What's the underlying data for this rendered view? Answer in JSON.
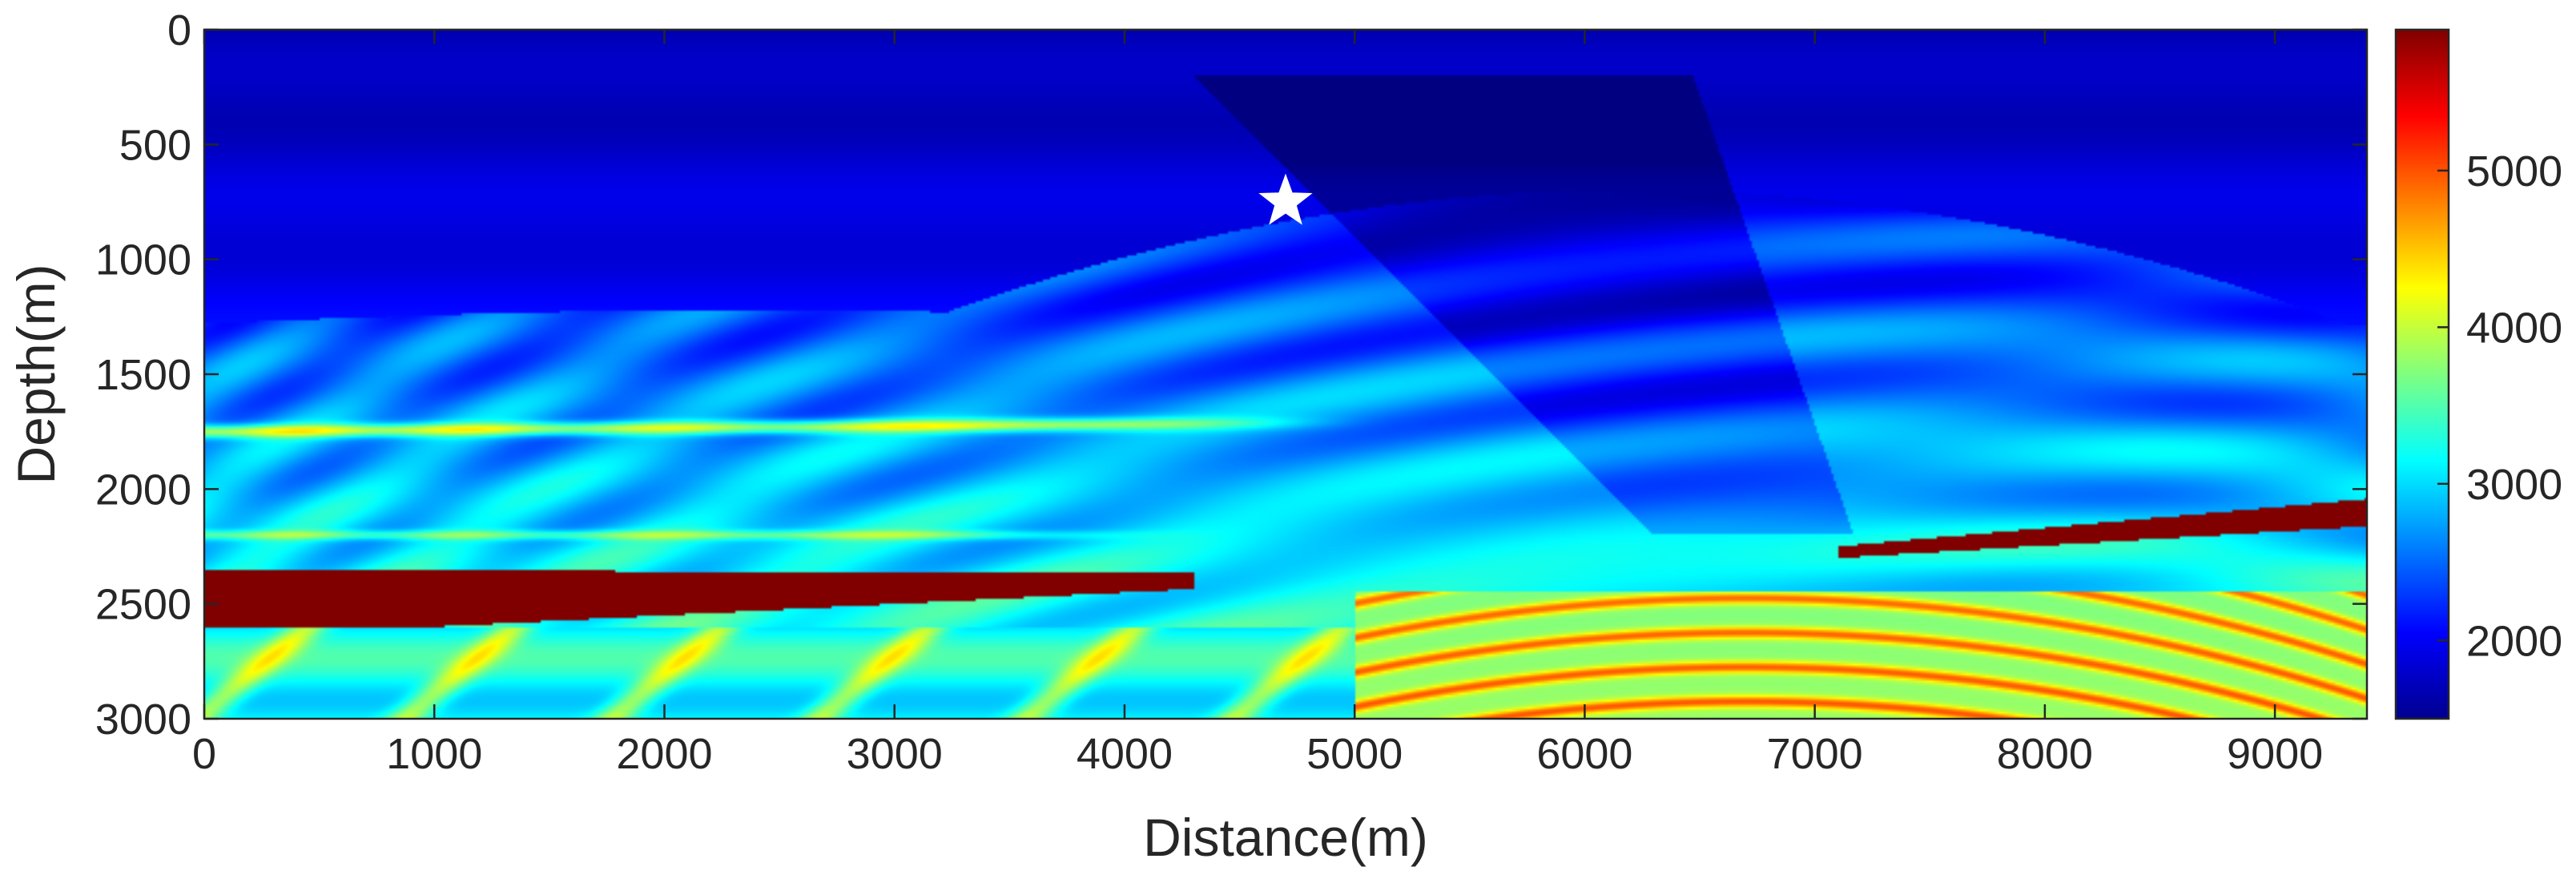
{
  "chart_data": {
    "type": "heatmap",
    "title": "",
    "xlabel": "Distance(m)",
    "ylabel": "Depth(m)",
    "xlim": [
      0,
      9400
    ],
    "ylim": [
      0,
      3000
    ],
    "y_reversed": true,
    "x_ticks": [
      0,
      1000,
      2000,
      3000,
      4000,
      5000,
      6000,
      7000,
      8000,
      9000
    ],
    "y_ticks": [
      0,
      500,
      1000,
      1500,
      2000,
      2500,
      3000
    ],
    "x_tick_labels": [
      "0",
      "1000",
      "2000",
      "3000",
      "4000",
      "5000",
      "6000",
      "7000",
      "8000",
      "9000"
    ],
    "y_tick_labels": [
      "0",
      "500",
      "1000",
      "1500",
      "2000",
      "2500",
      "3000"
    ],
    "colorbar": {
      "colormap": "jet",
      "clim": [
        1500,
        5900
      ],
      "ticks": [
        2000,
        3000,
        4000,
        5000
      ],
      "tick_labels": [
        "2000",
        "3000",
        "4000",
        "5000"
      ],
      "placement": "right"
    },
    "marker": {
      "shape": "star",
      "color": "#ffffff",
      "x": 4700,
      "y": 750
    },
    "grid": false,
    "description": "Marmousi-type P-wave velocity model (m/s) with a source marker"
  }
}
